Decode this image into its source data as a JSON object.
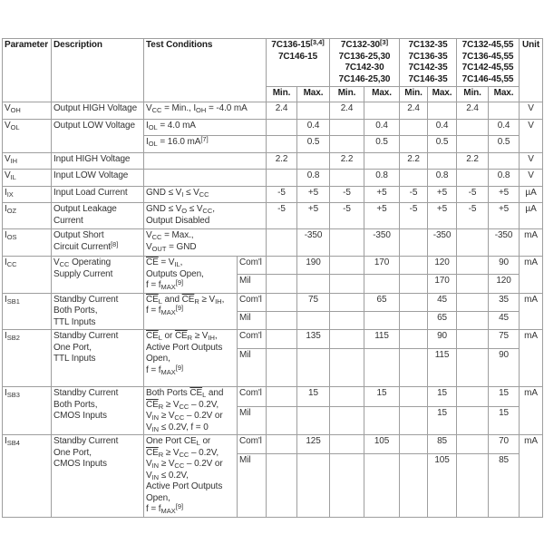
{
  "table": {
    "header": {
      "corner": [
        "Parameter",
        "Description",
        "Test Conditions"
      ],
      "min_label": "Min.",
      "max_label": "Max.",
      "unit_label": "Unit",
      "groups": [
        {
          "lines": [
            "7C136-15^[3,4]^",
            "7C146-15"
          ]
        },
        {
          "lines": [
            "7C132-30^[3]^",
            "7C136-25,30",
            "7C142-30",
            "7C146-25,30"
          ]
        },
        {
          "lines": [
            "7C132-35",
            "7C136-35",
            "7C142-35",
            "7C146-35"
          ]
        },
        {
          "lines": [
            "7C132-45,55",
            "7C136-45,55",
            "7C142-45,55",
            "7C146-45,55"
          ]
        }
      ]
    },
    "rows": [
      {
        "id": "voh",
        "param": "V~OH~",
        "description": [
          "Output HIGH Voltage"
        ],
        "cond": [
          "V~CC~ = Min., I~OH~ = -4.0 mA"
        ],
        "unit": "V",
        "subrows": [
          {
            "scope": null,
            "values": [
              "2.4",
              "",
              "2.4",
              "",
              "2.4",
              "",
              "2.4",
              ""
            ]
          }
        ]
      },
      {
        "id": "vol",
        "param": "V~OL~",
        "description": [
          "Output LOW Voltage"
        ],
        "unit": "V",
        "subrows": [
          {
            "cond": [
              "I~OL~ = 4.0 mA"
            ],
            "scope": null,
            "values": [
              "",
              "0.4",
              "",
              "0.4",
              "",
              "0.4",
              "",
              "0.4"
            ]
          },
          {
            "cond": [
              "I~OL~ = 16.0 mA^[7]^"
            ],
            "scope": null,
            "values": [
              "",
              "0.5",
              "",
              "0.5",
              "",
              "0.5",
              "",
              "0.5"
            ]
          }
        ]
      },
      {
        "id": "vih",
        "param": "V~IH~",
        "description": [
          "Input HIGH Voltage"
        ],
        "cond": [],
        "unit": "V",
        "subrows": [
          {
            "scope": null,
            "values": [
              "2.2",
              "",
              "2.2",
              "",
              "2.2",
              "",
              "2.2",
              ""
            ]
          }
        ]
      },
      {
        "id": "vil",
        "param": "V~IL~",
        "description": [
          "Input LOW Voltage"
        ],
        "cond": [],
        "unit": "V",
        "subrows": [
          {
            "scope": null,
            "values": [
              "",
              "0.8",
              "",
              "0.8",
              "",
              "0.8",
              "",
              "0.8"
            ]
          }
        ]
      },
      {
        "id": "iix",
        "param": "I~IX~",
        "description": [
          "Input Load Current"
        ],
        "cond": [
          "GND ≤ V~I~ ≤ V~CC~"
        ],
        "unit": "µA",
        "subrows": [
          {
            "scope": null,
            "values": [
              "-5",
              "+5",
              "-5",
              "+5",
              "-5",
              "+5",
              "-5",
              "+5"
            ]
          }
        ]
      },
      {
        "id": "ioz",
        "param": "I~OZ~",
        "description": [
          "Output Leakage",
          "Current"
        ],
        "cond": [
          "GND ≤ V~O~ ≤ V~CC~,",
          "Output Disabled"
        ],
        "unit": "µA",
        "subrows": [
          {
            "scope": null,
            "values": [
              "-5",
              "+5",
              "-5",
              "+5",
              "-5",
              "+5",
              "-5",
              "+5"
            ]
          }
        ]
      },
      {
        "id": "ios",
        "param": "I~OS~",
        "description": [
          "Output Short",
          "Circuit Current^[8]^"
        ],
        "cond": [
          "V~CC~ = Max.,",
          "V~OUT~ = GND"
        ],
        "unit": "mA",
        "subrows": [
          {
            "scope": null,
            "values": [
              "",
              "-350",
              "",
              "-350",
              "",
              "-350",
              "",
              "-350"
            ]
          }
        ]
      },
      {
        "id": "icc",
        "param": "I~CC~",
        "description": [
          "V~CC~ Operating",
          "Supply Current"
        ],
        "cond": [
          "|CE| = V~IL~,",
          "Outputs Open,",
          "f = f~MAX~^[9]^"
        ],
        "unit": "mA",
        "subrows": [
          {
            "scope": "Com'l",
            "values": [
              "",
              "190",
              "",
              "170",
              "",
              "120",
              "",
              "90"
            ]
          },
          {
            "scope": "Mil",
            "values": [
              "",
              "",
              "",
              "",
              "",
              "170",
              "",
              "120"
            ]
          }
        ]
      },
      {
        "id": "isb1",
        "param": "I~SB1~",
        "description": [
          "Standby Current",
          "Both Ports,",
          "TTL Inputs"
        ],
        "cond": [
          "|CE|~L~ and |CE|~R~ ≥ V~IH~,",
          "f = f~MAX~^[9]^"
        ],
        "unit": "mA",
        "subrows": [
          {
            "scope": "Com'l",
            "values": [
              "",
              "75",
              "",
              "65",
              "",
              "45",
              "",
              "35"
            ]
          },
          {
            "scope": "Mil",
            "values": [
              "",
              "",
              "",
              "",
              "",
              "65",
              "",
              "45"
            ]
          }
        ]
      },
      {
        "id": "isb2",
        "param": "I~SB2~",
        "description": [
          "Standby Current",
          "One Port,",
          "TTL Inputs"
        ],
        "cond": [
          "|CE|~L~ or |CE|~R~ ≥ V~IH~,",
          "Active Port Outputs",
          "Open,",
          "f = f~MAX~^[9]^"
        ],
        "unit": "mA",
        "subrows": [
          {
            "scope": "Com'l",
            "values": [
              "",
              "135",
              "",
              "115",
              "",
              "90",
              "",
              "75"
            ]
          },
          {
            "scope": "Mil",
            "values": [
              "",
              "",
              "",
              "",
              "",
              "115",
              "",
              "90"
            ]
          }
        ]
      },
      {
        "id": "isb3",
        "param": "I~SB3~",
        "description": [
          "Standby Current",
          "Both Ports,",
          "CMOS Inputs"
        ],
        "cond": [
          "Both Ports |CE|~L~ and",
          "|CE|~R~ ≥ V~CC~ – 0.2V,",
          "V~IN~ ≥ V~CC~ – 0.2V or",
          "V~IN~ ≤ 0.2V, f = 0"
        ],
        "unit": "mA",
        "subrows": [
          {
            "scope": "Com'l",
            "values": [
              "",
              "15",
              "",
              "15",
              "",
              "15",
              "",
              "15"
            ]
          },
          {
            "scope": "Mil",
            "values": [
              "",
              "",
              "",
              "",
              "",
              "15",
              "",
              "15"
            ]
          }
        ]
      },
      {
        "id": "isb4",
        "param": "I~SB4~",
        "description": [
          "Standby Current",
          "One Port,",
          "CMOS Inputs"
        ],
        "cond": [
          "One Port CE~L~ or",
          "|CE|~R~ ≥ V~CC~ – 0.2V,",
          "V~IN~ ≥ V~CC~ – 0.2V or",
          "V~IN~ ≤ 0.2V,",
          "Active Port Outputs",
          "Open,",
          "f = f~MAX~^[9]^"
        ],
        "unit": "mA",
        "subrows": [
          {
            "scope": "Com'l",
            "values": [
              "",
              "125",
              "",
              "105",
              "",
              "85",
              "",
              "70"
            ]
          },
          {
            "scope": "Mil",
            "values": [
              "",
              "",
              "",
              "",
              "",
              "105",
              "",
              "85"
            ]
          }
        ]
      }
    ]
  },
  "colors": {
    "border": "#9e9e9e",
    "text": "#333333"
  }
}
